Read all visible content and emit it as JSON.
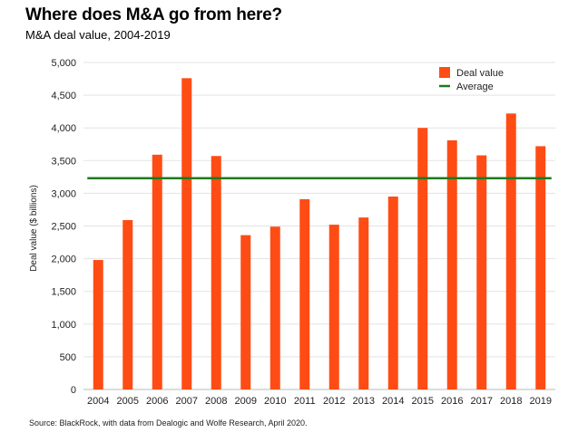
{
  "chart_data": {
    "type": "bar",
    "title": "Where does M&A go from here?",
    "subtitle": "M&A deal value, 2004-2019",
    "ylabel": "Deal value ($ billions)",
    "xlabel": "",
    "categories": [
      "2004",
      "2005",
      "2006",
      "2007",
      "2008",
      "2009",
      "2010",
      "2011",
      "2012",
      "2013",
      "2014",
      "2015",
      "2016",
      "2017",
      "2018",
      "2019"
    ],
    "series": [
      {
        "name": "Deal value",
        "type": "bar",
        "color": "#ff4c14",
        "values": [
          1980,
          2590,
          3590,
          4760,
          3570,
          2360,
          2490,
          2910,
          2520,
          2630,
          2950,
          4000,
          3810,
          3580,
          4220,
          3720
        ]
      },
      {
        "name": "Average",
        "type": "line",
        "color": "#1e7a1e",
        "value": 3230
      }
    ],
    "ylim": [
      0,
      5000
    ],
    "yticks": [
      "0",
      "500",
      "1,000",
      "1,500",
      "2,000",
      "2,500",
      "3,000",
      "3,500",
      "4,000",
      "4,500",
      "5,000"
    ],
    "ytick_values": [
      0,
      500,
      1000,
      1500,
      2000,
      2500,
      3000,
      3500,
      4000,
      4500,
      5000
    ],
    "grid": true,
    "legend_position": "top-right",
    "source": "Source: BlackRock, with data from Dealogic and Wolfe Research, April 2020."
  }
}
